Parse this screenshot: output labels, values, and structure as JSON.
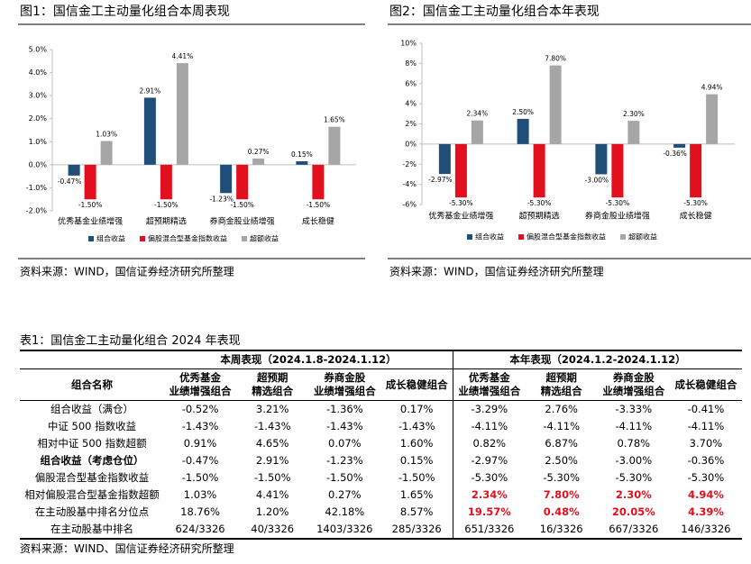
{
  "chart_data": [
    {
      "type": "bar",
      "title": "图1：国信金工主动量化组合本周表现",
      "categories": [
        "优秀基金业绩增强",
        "超预期精选",
        "券商金股业绩增强",
        "成长稳健"
      ],
      "series": [
        {
          "name": "组合收益",
          "color": "#1f4e79",
          "values": [
            -0.47,
            2.91,
            -1.23,
            0.15
          ],
          "value_labels": [
            "-0.47%",
            "2.91%",
            "-1.23%",
            "0.15%"
          ]
        },
        {
          "name": "偏股混合型基金指数收益",
          "color": "#e2101f",
          "values": [
            -1.5,
            -1.5,
            -1.5,
            -1.5
          ],
          "value_labels": [
            "-1.50%",
            "-1.50%",
            "-1.50%",
            "-1.50%"
          ]
        },
        {
          "name": "超额收益",
          "color": "#a6a6a6",
          "values": [
            1.03,
            4.41,
            0.27,
            1.65
          ],
          "value_labels": [
            "1.03%",
            "4.41%",
            "0.27%",
            "1.65%"
          ]
        }
      ],
      "ylim": [
        -2,
        5
      ],
      "yticks": [
        {
          "value": -2,
          "label": "-2.0%"
        },
        {
          "value": -1,
          "label": "-1.0%"
        },
        {
          "value": 0,
          "label": "0.0%"
        },
        {
          "value": 1,
          "label": "1.0%"
        },
        {
          "value": 2,
          "label": "2.0%"
        },
        {
          "value": 3,
          "label": "3.0%"
        },
        {
          "value": 4,
          "label": "4.0%"
        },
        {
          "value": 5,
          "label": "5.0%"
        }
      ],
      "grid": false,
      "legend": "bottom",
      "source": "资料来源：WIND，国信证券经济研究所整理"
    },
    {
      "type": "bar",
      "title": "图2：国信金工主动量化组合本年表现",
      "categories": [
        "优秀基金业绩增强",
        "超预期精选",
        "券商金股业绩增强",
        "成长稳健"
      ],
      "series": [
        {
          "name": "组合收益",
          "color": "#1f4e79",
          "values": [
            -2.97,
            2.5,
            -3.0,
            -0.36
          ],
          "value_labels": [
            "-2.97%",
            "2.50%",
            "-3.00%",
            "-0.36%"
          ]
        },
        {
          "name": "偏股混合型基金指数收益",
          "color": "#e2101f",
          "values": [
            -5.3,
            -5.3,
            -5.3,
            -5.3
          ],
          "value_labels": [
            "-5.30%",
            "-5.30%",
            "-5.30%",
            "-5.30%"
          ]
        },
        {
          "name": "超额收益",
          "color": "#a6a6a6",
          "values": [
            2.34,
            7.8,
            2.3,
            4.94
          ],
          "value_labels": [
            "2.34%",
            "7.80%",
            "2.30%",
            "4.94%"
          ]
        }
      ],
      "ylim": [
        -6,
        10
      ],
      "yticks": [
        {
          "value": -6,
          "label": "-6%"
        },
        {
          "value": -4,
          "label": "-4%"
        },
        {
          "value": -2,
          "label": "-2%"
        },
        {
          "value": 0,
          "label": "0%"
        },
        {
          "value": 2,
          "label": "2%"
        },
        {
          "value": 4,
          "label": "4%"
        },
        {
          "value": 6,
          "label": "6%"
        },
        {
          "value": 8,
          "label": "8%"
        },
        {
          "value": 10,
          "label": "10%"
        }
      ],
      "grid": false,
      "legend": "bottom",
      "source": "资料来源：WIND，国信证券经济研究所整理"
    }
  ],
  "table": {
    "title": "表1：国信金工主动量化组合 2024 年表现",
    "groups": [
      "本周表现（2024.1.8-2024.1.12）",
      "本年表现（2024.1.2-2024.1.12）"
    ],
    "header": [
      [
        "组合名称"
      ],
      [
        "优秀基金",
        "业绩增强组合"
      ],
      [
        "超预期",
        "精选组合"
      ],
      [
        "券商金股",
        "业绩增强组合"
      ],
      [
        "成长稳健组合"
      ],
      [
        "优秀基金",
        "业绩增强组合"
      ],
      [
        "超预期",
        "精选组合"
      ],
      [
        "券商金股",
        "业绩增强组合"
      ],
      [
        "成长稳健组合"
      ]
    ],
    "rows": [
      [
        "组合收益（满仓）",
        "-0.52%",
        "3.21%",
        "-1.36%",
        "0.17%",
        "-3.29%",
        "2.76%",
        "-3.33%",
        "-0.41%"
      ],
      [
        "中证 500 指数收益",
        "-1.43%",
        "-1.43%",
        "-1.43%",
        "-1.43%",
        "-4.11%",
        "-4.11%",
        "-4.11%",
        "-4.11%"
      ],
      [
        "相对中证 500 指数超额",
        "0.91%",
        "4.65%",
        "0.07%",
        "1.60%",
        "0.82%",
        "6.87%",
        "0.78%",
        "3.70%"
      ],
      [
        "组合收益（考虑仓位）",
        "-0.47%",
        "2.91%",
        "-1.23%",
        "0.15%",
        "-2.97%",
        "2.50%",
        "-3.00%",
        "-0.36%"
      ],
      [
        "偏股混合型基金指数收益",
        "-1.50%",
        "-1.50%",
        "-1.50%",
        "-1.50%",
        "-5.30%",
        "-5.30%",
        "-5.30%",
        "-5.30%"
      ],
      [
        "相对偏股混合型基金指数超额",
        "1.03%",
        "4.41%",
        "0.27%",
        "1.65%",
        "2.34%",
        "7.80%",
        "2.30%",
        "4.94%"
      ],
      [
        "在主动股基中排名分位点",
        "18.76%",
        "1.20%",
        "42.18%",
        "8.57%",
        "19.57%",
        "0.48%",
        "20.05%",
        "4.39%"
      ],
      [
        "在主动股基中排名",
        "624/3326",
        "40/3326",
        "1403/3326",
        "285/3326",
        "651/3326",
        "16/3326",
        "667/3326",
        "146/3326"
      ]
    ],
    "source": "资料来源：WIND、国信证券经济研究所整理"
  }
}
